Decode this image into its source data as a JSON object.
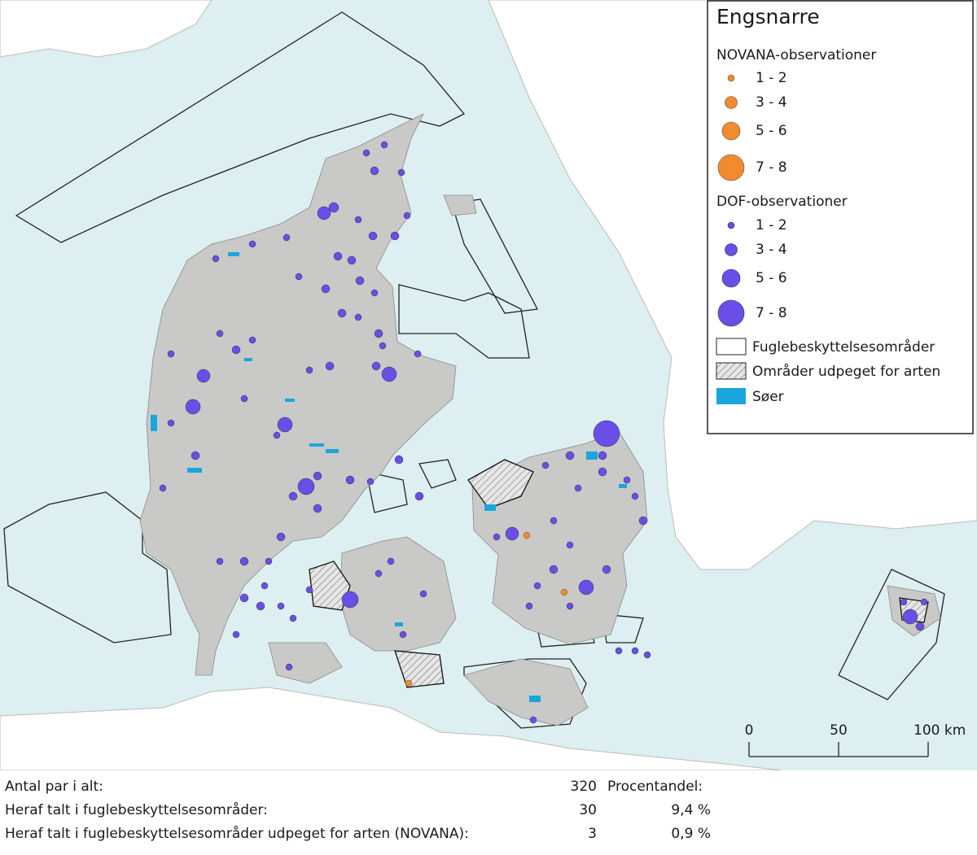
{
  "legend": {
    "title": "Engsnarre",
    "novana": {
      "heading": "NOVANA-observationer",
      "classes": [
        "1 - 2",
        "3 - 4",
        "5 - 6",
        "7 - 8"
      ]
    },
    "dof": {
      "heading": "DOF-observationer",
      "classes": [
        "1 - 2",
        "3 - 4",
        "5 - 6",
        "7 - 8"
      ]
    },
    "areas": [
      "Fuglebeskyttelsesområder",
      "Områder udpeget for arten",
      "Søer"
    ]
  },
  "scale_bar": {
    "labels": [
      "0",
      "50",
      "100 km"
    ]
  },
  "summary": {
    "rows": [
      {
        "label": "Antal par i alt:",
        "count": 320,
        "note": "Procentandel:"
      },
      {
        "label": "Heraf talt i fuglebeskyttelsesområder:",
        "count": 30,
        "note": "9,4 %"
      },
      {
        "label": "Heraf talt i fuglebeskyttelsesområder udpeget for arten (NOVANA):",
        "count": 3,
        "note": "0,9 %"
      }
    ]
  }
}
